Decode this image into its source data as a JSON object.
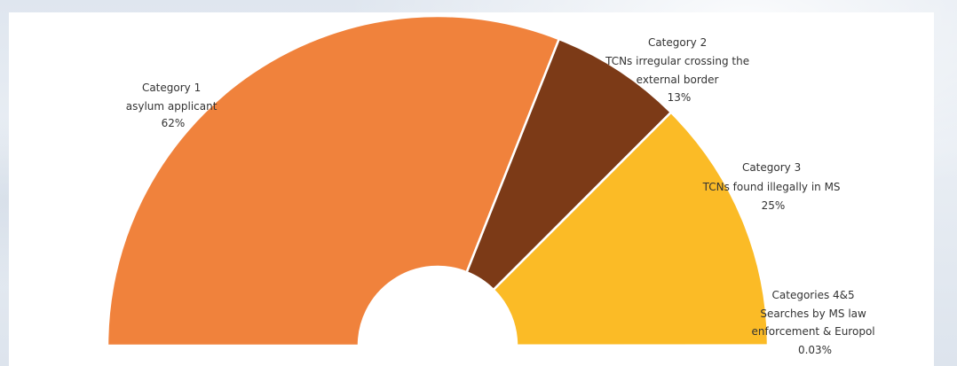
{
  "chart_data": {
    "type": "pie",
    "subtype": "half-donut",
    "slices": [
      {
        "category": "Category 1",
        "description": "asylum applicant",
        "value": 62,
        "label": "62%",
        "color": "#F0823C"
      },
      {
        "category": "Category 2",
        "description": "TCNs irregular crossing the external border",
        "value": 13,
        "label": "13%",
        "color": "#7C3A17"
      },
      {
        "category": "Category 3",
        "description": "TCNs found illegally in MS",
        "value": 25,
        "label": "25%",
        "color": "#FBBB26"
      },
      {
        "category": "Categories 4&5",
        "description": "Searches by MS law enforcement & Europol",
        "value": 0.03,
        "label": "0.03%",
        "color": "#FBBB26"
      }
    ],
    "labels": {
      "cat1": {
        "line1": "Category 1",
        "line2": "asylum applicant",
        "line3": "62%"
      },
      "cat2": {
        "line1": "Category 2",
        "line2": "TCNs irregular crossing the",
        "line3": "external border",
        "line4": "13%"
      },
      "cat3": {
        "line1": "Category 3",
        "line2": "TCNs found illegally in MS",
        "line3": "25%"
      },
      "cat45": {
        "line1": "Categories 4&5",
        "line2": "Searches by MS law",
        "line3": "enforcement & Europol",
        "line4": "0.03%"
      }
    }
  }
}
